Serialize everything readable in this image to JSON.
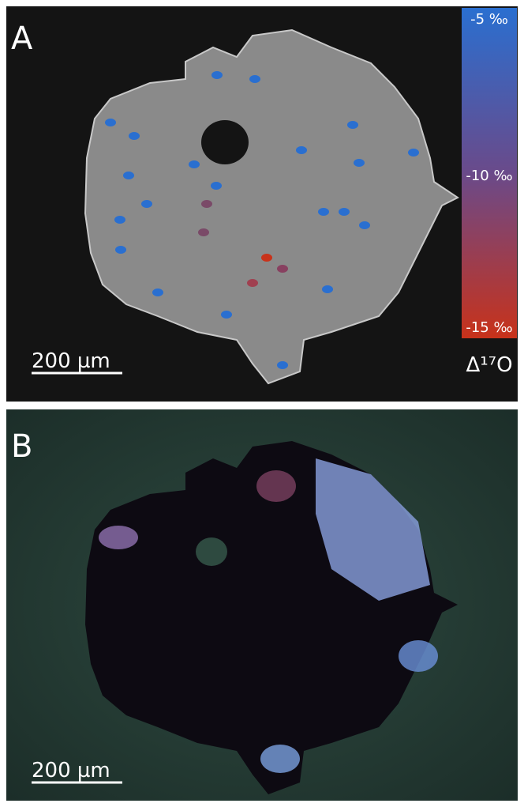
{
  "panels": [
    {
      "label": "A",
      "scale_bar": "200 µm",
      "colorbar": {
        "labels": [
          "-5 ‰",
          "-10 ‰",
          "-15 ‰"
        ],
        "title": "Δ¹⁷O"
      }
    },
    {
      "label": "B",
      "scale_bar": "200 µm"
    }
  ]
}
